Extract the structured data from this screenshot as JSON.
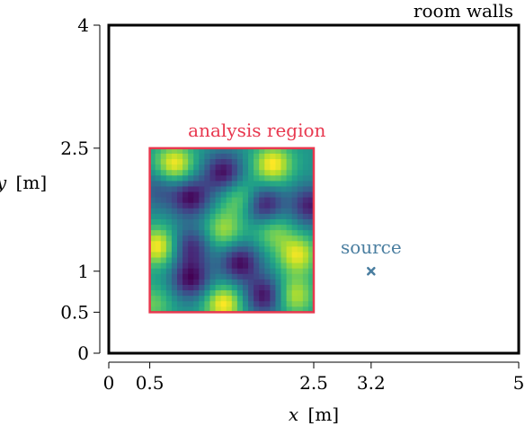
{
  "chart_data": {
    "type": "heatmap",
    "xlabel_var": "x",
    "xlabel_unit": "[m]",
    "ylabel_var": "y",
    "ylabel_unit": "[m]",
    "xlim": [
      0,
      5
    ],
    "ylim": [
      0,
      4
    ],
    "x_ticks": [
      {
        "value": 0,
        "label": "0"
      },
      {
        "value": 0.5,
        "label": "0.5"
      },
      {
        "value": 2.5,
        "label": "2.5"
      },
      {
        "value": 3.2,
        "label": "3.2"
      },
      {
        "value": 5,
        "label": "5"
      }
    ],
    "y_ticks": [
      {
        "value": 0,
        "label": "0"
      },
      {
        "value": 0.5,
        "label": "0.5"
      },
      {
        "value": 1,
        "label": "1"
      },
      {
        "value": 2.5,
        "label": "2.5"
      },
      {
        "value": 4,
        "label": "4"
      }
    ],
    "room": {
      "label": "room walls",
      "x": [
        0,
        5
      ],
      "y": [
        0,
        4
      ]
    },
    "analysis_region": {
      "label": "analysis region",
      "x": [
        0.5,
        2.5
      ],
      "y": [
        0.5,
        2.5
      ],
      "color": "#e8384f"
    },
    "source": {
      "label": "source",
      "x": 3.2,
      "y": 1.0,
      "color": "#4a7ea0"
    },
    "colormap": "viridis",
    "grid": false
  }
}
